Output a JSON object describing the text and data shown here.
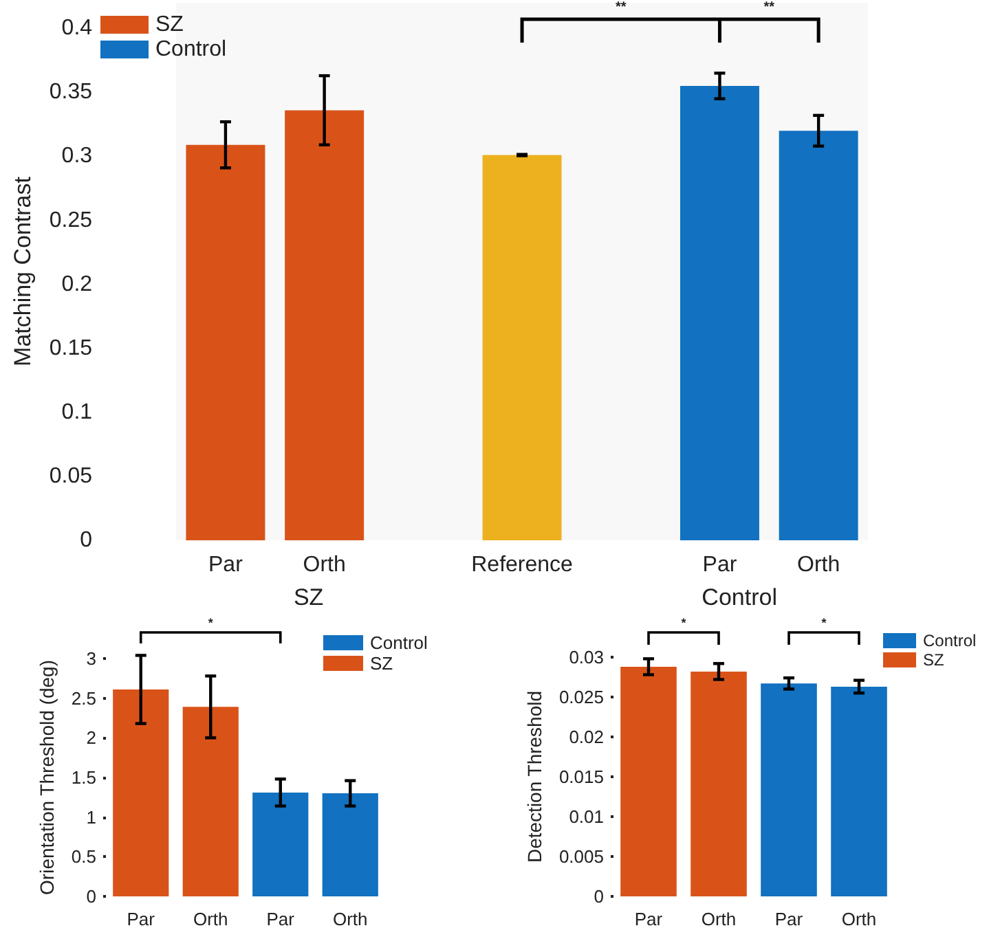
{
  "chart_data": [
    {
      "type": "bar",
      "ylabel": "Matching Contrast",
      "categories": [
        "Par",
        "Orth",
        null,
        "Reference",
        null,
        "Par",
        "Orth"
      ],
      "series": [
        {
          "name": "SZ",
          "color": "#d95319",
          "values": [
            0.309,
            0.336,
            null,
            null,
            null,
            null,
            null
          ],
          "errors": [
            0.018,
            0.027,
            null,
            null,
            null,
            null,
            null
          ]
        },
        {
          "name": "Control",
          "color": "#1271c0",
          "values": [
            null,
            null,
            null,
            null,
            null,
            0.355,
            0.32
          ],
          "errors": [
            null,
            null,
            null,
            null,
            null,
            0.01,
            0.012
          ]
        },
        {
          "color": "#edb120",
          "values": [
            null,
            null,
            null,
            0.301,
            null,
            null,
            null
          ],
          "errors": [
            null,
            null,
            null,
            0.0005,
            null,
            null,
            null
          ]
        }
      ],
      "ylim": [
        0,
        0.42
      ],
      "yticks": [
        0,
        0.05,
        0.1,
        0.15,
        0.2,
        0.25,
        0.3,
        0.35,
        0.4
      ],
      "grid": false,
      "legend": "top left",
      "annotations": [
        "**",
        "**",
        "SZ",
        "Control"
      ]
    },
    {
      "type": "bar",
      "ylabel": "Orientation Threshold (deg)",
      "categories": [
        "Par",
        "Orth",
        "Par",
        "Orth"
      ],
      "series": [
        {
          "name": "Control",
          "color": "#1271c0",
          "values": [
            null,
            null,
            1.31,
            1.3
          ],
          "errors": [
            null,
            null,
            0.17,
            0.16
          ]
        },
        {
          "name": "SZ",
          "color": "#d95319",
          "values": [
            2.61,
            2.39,
            null,
            null
          ],
          "errors": [
            0.43,
            0.39,
            null,
            null
          ]
        }
      ],
      "ylim": [
        0,
        3
      ],
      "yticks": [
        0,
        0.5,
        1,
        1.5,
        2,
        2.5,
        3
      ],
      "grid": false,
      "legend": "top right",
      "annotations": [
        "*"
      ]
    },
    {
      "type": "bar",
      "ylabel": "Detection Threshold",
      "categories": [
        "Par",
        "Orth",
        "Par",
        "Orth"
      ],
      "series": [
        {
          "name": "Control",
          "color": "#1271c0",
          "values": [
            null,
            null,
            0.0267,
            0.0263
          ],
          "errors": [
            null,
            null,
            0.0007,
            0.0008
          ]
        },
        {
          "name": "SZ",
          "color": "#d95319",
          "values": [
            0.0288,
            0.0282,
            null,
            null
          ],
          "errors": [
            0.001,
            0.001,
            null,
            null
          ]
        }
      ],
      "ylim": [
        0,
        0.03
      ],
      "yticks": [
        0,
        0.005,
        0.01,
        0.015,
        0.02,
        0.025,
        0.03
      ],
      "grid": false,
      "legend": "top right",
      "annotations": [
        "*",
        "*"
      ]
    }
  ]
}
